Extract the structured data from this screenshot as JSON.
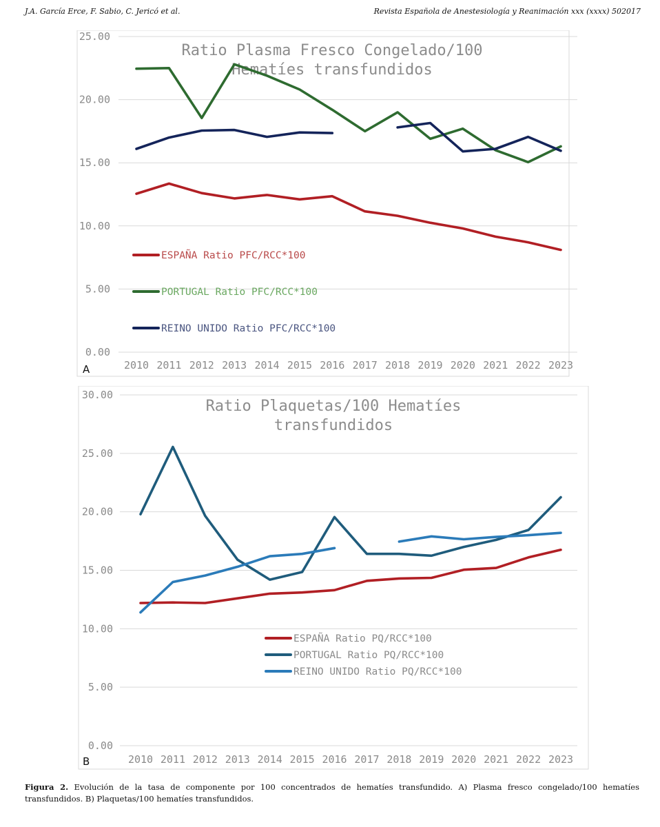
{
  "header": {
    "left": "J.A. García Erce, F. Sabio, C. Jericó et al.",
    "right": "Revista Española de Anestesiología y Reanimación xxx (xxxx) 502017"
  },
  "caption": {
    "label": "Figura 2.",
    "text": "Evolución de la tasa de componente por 100 concentrados de hematíes transfundido. A) Plasma fresco congelado/100 hematíes transfundidos. B) Plaquetas/100 hematíes transfundidos."
  },
  "chart_data": [
    {
      "type": "line",
      "panel_label": "A",
      "title_lines": [
        "Ratio Plasma Fresco Congelado/100",
        "Hematíes transfundidos"
      ],
      "x": [
        "2010",
        "2011",
        "2012",
        "2013",
        "2014",
        "2015",
        "2016",
        "2017",
        "2018",
        "2019",
        "2020",
        "2021",
        "2022",
        "2023"
      ],
      "ylim": [
        0,
        25
      ],
      "yticks": [
        "0.00",
        "5.00",
        "10.00",
        "15.00",
        "20.00",
        "25.00"
      ],
      "grid": true,
      "legend_position": "left",
      "series": [
        {
          "name": "ESPAÑA Ratio PFC/RCC*100",
          "color": "#b11f24",
          "values": [
            12.55,
            13.35,
            12.6,
            12.18,
            12.45,
            12.1,
            12.35,
            11.15,
            10.8,
            10.25,
            9.8,
            9.15,
            8.7,
            8.1
          ]
        },
        {
          "name": "PORTUGAL Ratio PFC/RCC*100",
          "color": "#2e6b30",
          "values": [
            22.45,
            22.5,
            18.55,
            22.8,
            21.9,
            20.8,
            19.2,
            17.5,
            19.0,
            16.9,
            17.7,
            16.0,
            15.05,
            16.3
          ]
        },
        {
          "name": "REINO UNIDO Ratio PFC/RCC*100",
          "color": "#14245a",
          "values": [
            16.1,
            17.0,
            17.55,
            17.6,
            17.05,
            17.4,
            17.35,
            null,
            17.8,
            18.15,
            15.9,
            16.1,
            17.05,
            15.95
          ]
        }
      ]
    },
    {
      "type": "line",
      "panel_label": "B",
      "title_lines": [
        "Ratio Plaquetas/100 Hematíes",
        "transfundidos"
      ],
      "x": [
        "2010",
        "2011",
        "2012",
        "2013",
        "2014",
        "2015",
        "2016",
        "2017",
        "2018",
        "2019",
        "2020",
        "2021",
        "2022",
        "2023"
      ],
      "ylim": [
        0,
        30
      ],
      "yticks": [
        "0.00",
        "5.00",
        "10.00",
        "15.00",
        "20.00",
        "25.00",
        "30.00"
      ],
      "grid": true,
      "legend_position": "bottom-center",
      "series": [
        {
          "name": "ESPAÑA Ratio PQ/RCC*100",
          "color": "#b11f24",
          "values": [
            12.2,
            12.25,
            12.2,
            12.6,
            13.0,
            13.1,
            13.3,
            14.1,
            14.3,
            14.35,
            15.05,
            15.2,
            16.1,
            16.75
          ]
        },
        {
          "name": "PORTUGAL Ratio PQ/RCC*100",
          "color": "#1f5c7c",
          "values": [
            19.8,
            25.55,
            19.65,
            15.9,
            14.2,
            14.85,
            19.55,
            16.4,
            16.4,
            16.25,
            17.0,
            17.6,
            18.45,
            21.25
          ]
        },
        {
          "name": "REINO UNIDO Ratio PQ/RCC*100",
          "color": "#2b7bb9",
          "values": [
            11.4,
            14.0,
            14.55,
            15.3,
            16.2,
            16.4,
            16.9,
            null,
            17.45,
            17.9,
            17.65,
            17.85,
            18.0,
            18.2
          ]
        }
      ]
    }
  ]
}
